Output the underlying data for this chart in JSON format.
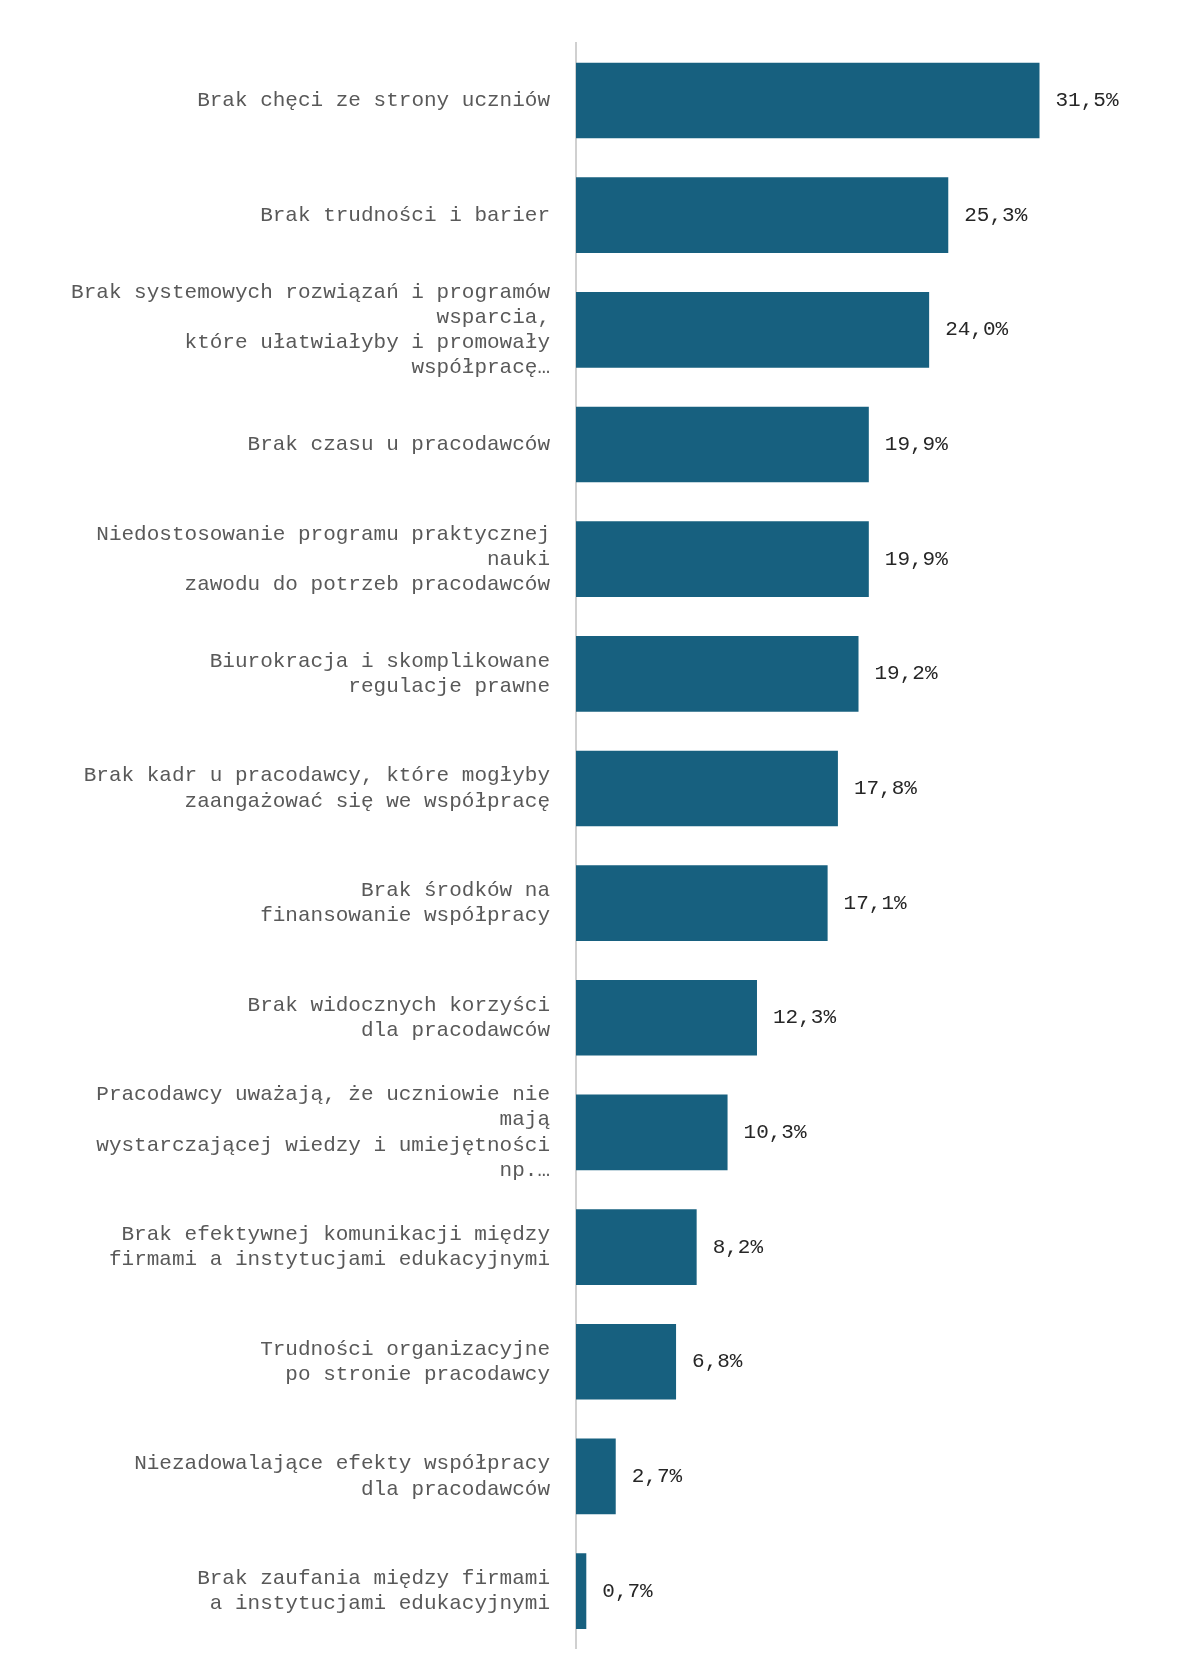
{
  "chart_data": {
    "type": "bar",
    "orientation": "horizontal",
    "categories": [
      "Brak chęci ze strony uczniów",
      "Brak trudności i barier",
      "Brak systemowych rozwiązań i programów\nwsparcia,\nktóre ułatwiałyby i promowały\nwspółpracę…",
      "Brak czasu u pracodawców",
      "Niedostosowanie programu praktycznej\nnauki\nzawodu do potrzeb pracodawców",
      "Biurokracja i skomplikowane\nregulacje prawne",
      "Brak kadr u pracodawcy, które mogłyby\nzaangażować się we współpracę",
      "Brak środków na\nfinansowanie współpracy",
      "Brak widocznych korzyści\ndla pracodawców",
      "Pracodawcy uważają, że uczniowie nie\nmają\nwystarczającej wiedzy i umiejętności\nnp.…",
      "Brak efektywnej komunikacji między\nfirmami a instytucjami edukacyjnymi",
      "Trudności organizacyjne\npo stronie pracodawcy",
      "Niezadowalające efekty współpracy\ndla pracodawców",
      "Brak zaufania między firmami\na instytucjami edukacyjnymi"
    ],
    "values": [
      31.5,
      25.3,
      24.0,
      19.9,
      19.9,
      19.2,
      17.8,
      17.1,
      12.3,
      10.3,
      8.2,
      6.8,
      2.7,
      0.7
    ],
    "value_labels": [
      "31,5%",
      "25,3%",
      "24,0%",
      "19,9%",
      "19,9%",
      "19,2%",
      "17,8%",
      "17,1%",
      "12,3%",
      "10,3%",
      "8,2%",
      "6,8%",
      "2,7%",
      "0,7%"
    ],
    "color": "#17607f",
    "legend": false
  }
}
